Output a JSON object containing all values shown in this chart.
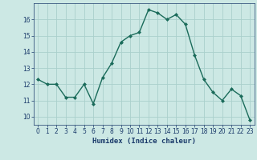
{
  "x": [
    0,
    1,
    2,
    3,
    4,
    5,
    6,
    7,
    8,
    9,
    10,
    11,
    12,
    13,
    14,
    15,
    16,
    17,
    18,
    19,
    20,
    21,
    22,
    23
  ],
  "y": [
    12.3,
    12.0,
    12.0,
    11.2,
    11.2,
    12.0,
    10.8,
    12.4,
    13.3,
    14.6,
    15.0,
    15.2,
    16.6,
    16.4,
    16.0,
    16.3,
    15.7,
    13.8,
    12.3,
    11.5,
    11.0,
    11.7,
    11.3,
    9.8
  ],
  "xlabel": "Humidex (Indice chaleur)",
  "ylim": [
    9.5,
    17.0
  ],
  "yticks": [
    10,
    11,
    12,
    13,
    14,
    15,
    16
  ],
  "xticks": [
    0,
    1,
    2,
    3,
    4,
    5,
    6,
    7,
    8,
    9,
    10,
    11,
    12,
    13,
    14,
    15,
    16,
    17,
    18,
    19,
    20,
    21,
    22,
    23
  ],
  "line_color": "#1a6b5a",
  "marker_color": "#1a6b5a",
  "bg_color": "#cce8e4",
  "grid_color": "#aad0cc",
  "tick_label_color": "#1a3a6a",
  "xlabel_color": "#1a3a6a"
}
